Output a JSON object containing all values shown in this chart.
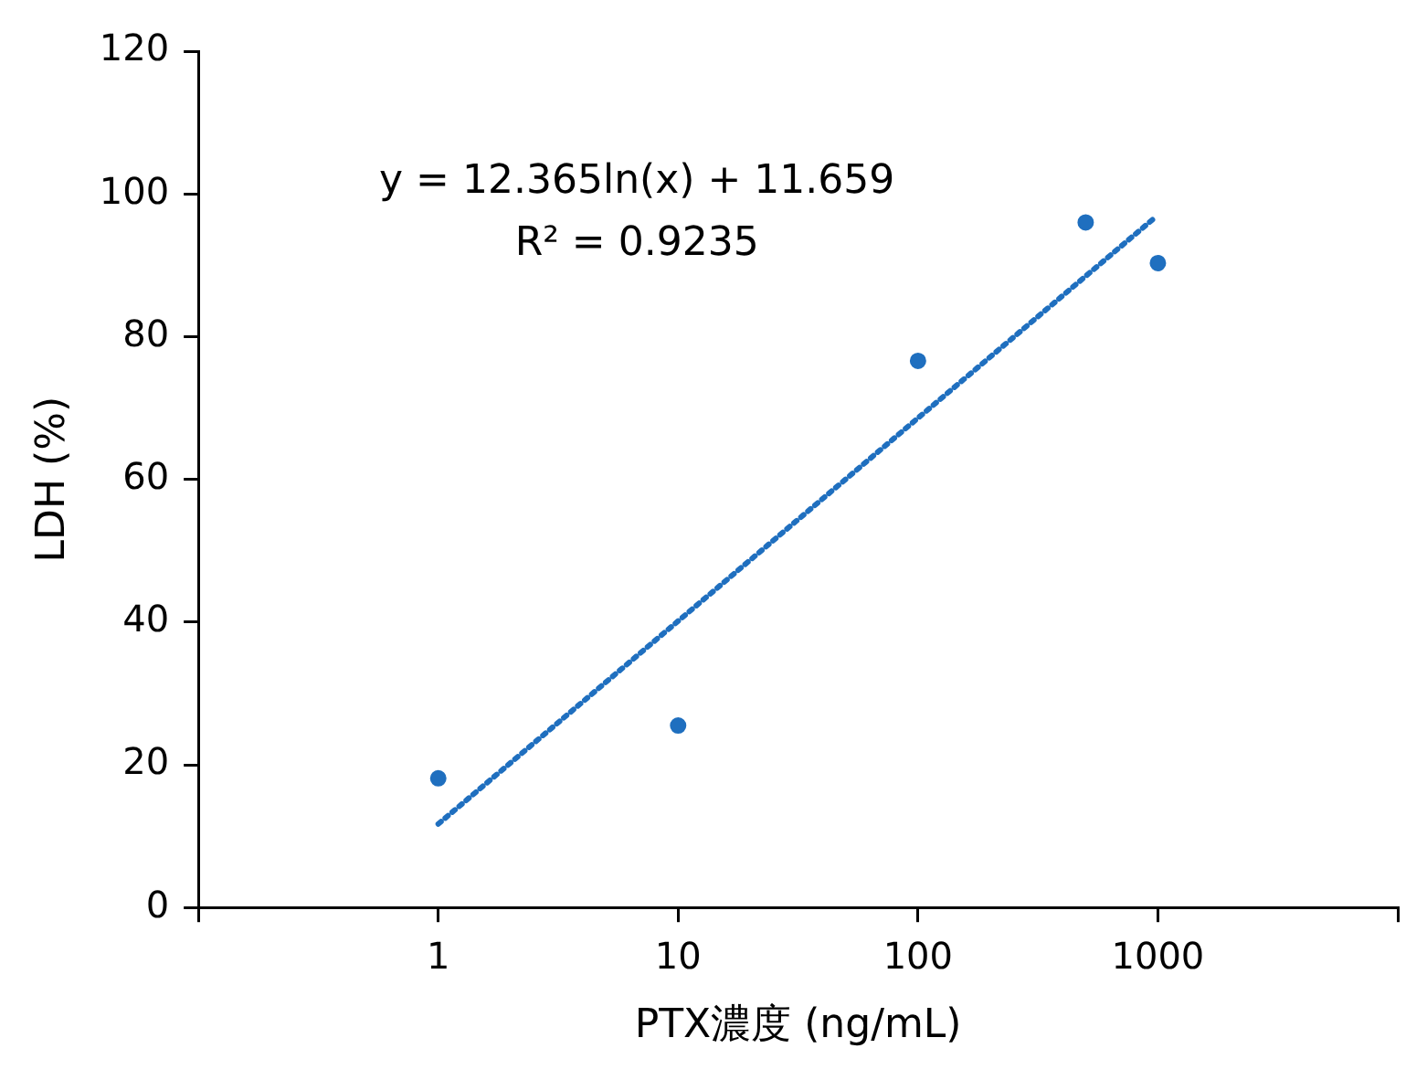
{
  "chart_data": {
    "type": "scatter",
    "xlabel": "PTX濃度 (ng/mL)",
    "ylabel": "LDH (%)",
    "log": "x",
    "xlim": [
      0.1,
      10000
    ],
    "xticks": [
      {
        "value": 0.1,
        "label": null
      },
      1,
      10,
      100,
      1000,
      {
        "value": 10000,
        "label": null
      }
    ],
    "ylim": [
      0,
      120
    ],
    "yticks": [
      0,
      20,
      40,
      60,
      80,
      100,
      120
    ],
    "grid": false,
    "legend": false,
    "annotations": [
      "y = 12.365ln(x) + 11.659",
      "R² = 0.9235"
    ],
    "series": [
      {
        "color": "#1f6fbf",
        "marker": "circle",
        "x": [
          1,
          10,
          100,
          500,
          1000
        ],
        "values": [
          18.1,
          25.5,
          76.6,
          96,
          90.3
        ]
      },
      {
        "type": "line",
        "color": "#1f6fbf",
        "marker": "none",
        "line_style": "dotted",
        "x": [
          1,
          950
        ],
        "values": [
          11.7,
          96.4
        ]
      }
    ]
  }
}
